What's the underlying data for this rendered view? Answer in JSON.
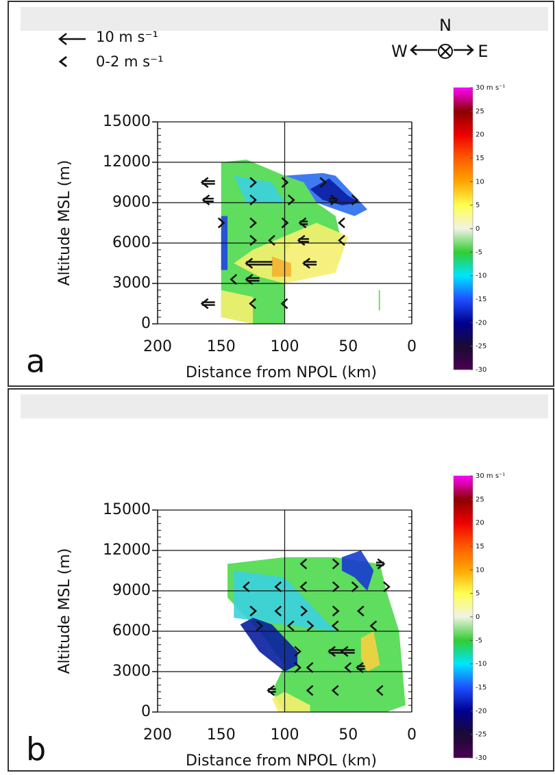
{
  "legend": {
    "arrow_label": "10 m s⁻¹",
    "arrow_speed": 10,
    "chevron_label": "0-2 m s⁻¹"
  },
  "compass": {
    "north": "N",
    "west": "W",
    "east": "E"
  },
  "chart_data": [
    {
      "type": "cross-section",
      "label": "a",
      "xlabel": "Distance from NPOL (km)",
      "ylabel": "Altitude MSL (m)",
      "xlim": [
        200,
        0
      ],
      "ylim": [
        0,
        15000
      ],
      "xticks": [
        200,
        150,
        100,
        50,
        0
      ],
      "yticks": [
        0,
        3000,
        6000,
        9000,
        12000,
        15000
      ],
      "xgrid": [
        100
      ],
      "colorbar": {
        "lim": [
          -30,
          30
        ],
        "ticks": [
          {
            "value": 30,
            "label": "30 m s⁻¹"
          },
          25,
          20,
          15,
          10,
          5,
          0,
          -5,
          -10,
          -15,
          -20,
          -25,
          -30
        ],
        "colors": [
          "#4b0050",
          "#1a0a35",
          "#000090",
          "#1e50ff",
          "#00e5ff",
          "#32cd32",
          "#f2f2e4",
          "#ffff50",
          "#ffa500",
          "#ff5a00",
          "#ee0000",
          "#8b0000",
          "#ff00ff"
        ]
      },
      "regions": [
        {
          "color": "#4cd94c",
          "x": [
            150,
            130,
            100,
            85,
            75,
            60,
            55,
            95,
            100,
            100,
            125,
            150
          ],
          "y": [
            12000,
            12200,
            11000,
            10500,
            9000,
            8000,
            6000,
            6000,
            5000,
            0,
            0,
            500
          ]
        },
        {
          "color": "#3cd0e0",
          "x": [
            140,
            110,
            100,
            130
          ],
          "y": [
            11000,
            10500,
            9000,
            9000
          ]
        },
        {
          "color": "#2a6cf0",
          "x": [
            100,
            70,
            60,
            45,
            35,
            45,
            60,
            75,
            85
          ],
          "y": [
            11000,
            11200,
            11000,
            9500,
            8500,
            8000,
            8500,
            9000,
            10500
          ]
        },
        {
          "color": "#0a1ea0",
          "x": [
            80,
            65,
            50,
            40,
            55,
            70
          ],
          "y": [
            10000,
            10800,
            9500,
            9000,
            8800,
            9200
          ]
        },
        {
          "color": "#2244e0",
          "x": [
            150,
            145,
            145,
            150
          ],
          "y": [
            8000,
            8000,
            4000,
            4000
          ]
        },
        {
          "color": "#f5f070",
          "x": [
            100,
            75,
            50,
            60,
            75,
            100,
            120,
            140,
            125
          ],
          "y": [
            6500,
            7500,
            6500,
            3800,
            3500,
            3000,
            3500,
            4500,
            5500
          ]
        },
        {
          "color": "#f5b030",
          "x": [
            110,
            95,
            95,
            110
          ],
          "y": [
            5000,
            4500,
            3500,
            3500
          ]
        },
        {
          "color": "#f5f070",
          "x": [
            150,
            125,
            125,
            150
          ],
          "y": [
            2500,
            2000,
            0,
            500
          ]
        },
        {
          "color": "#4cd94c",
          "x": [
            26,
            25,
            25,
            26
          ],
          "y": [
            2500,
            2500,
            1000,
            1000
          ]
        }
      ],
      "arrows": {
        "x": [
          160,
          160,
          125,
          100,
          70,
          62,
          45,
          125,
          95,
          150,
          125,
          100,
          85,
          55,
          125,
          110,
          85,
          55,
          120,
          80,
          140,
          125,
          160,
          125,
          100
        ],
        "y": [
          10500,
          9200,
          10500,
          10500,
          10500,
          9200,
          9200,
          9200,
          9200,
          7500,
          7500,
          7500,
          7500,
          7500,
          6200,
          6200,
          6200,
          6200,
          4500,
          4500,
          3300,
          3300,
          1500,
          1500,
          1500
        ],
        "u": [
          -5,
          -4,
          1,
          1,
          1,
          3,
          1,
          1,
          1,
          1,
          1,
          1,
          -3,
          -2,
          1,
          -1,
          -4,
          -1,
          -10,
          -5,
          -1,
          -5,
          -5,
          -1,
          -1
        ]
      }
    },
    {
      "type": "cross-section",
      "label": "b",
      "xlabel": "Distance from NPOL (km)",
      "ylabel": "Altitude MSL (m)",
      "xlim": [
        200,
        0
      ],
      "ylim": [
        0,
        15000
      ],
      "xticks": [
        200,
        150,
        100,
        50,
        0
      ],
      "yticks": [
        0,
        3000,
        6000,
        9000,
        12000,
        15000
      ],
      "xgrid": [
        100
      ],
      "colorbar": {
        "lim": [
          -30,
          30
        ],
        "ticks": [
          {
            "value": 30,
            "label": "30 m s⁻¹"
          },
          25,
          20,
          15,
          10,
          5,
          0,
          -5,
          -10,
          -15,
          -20,
          -25,
          -30
        ],
        "colors": [
          "#4b0050",
          "#1a0a35",
          "#000090",
          "#1e50ff",
          "#00e5ff",
          "#32cd32",
          "#f2f2e4",
          "#ffff50",
          "#ffa500",
          "#ff5a00",
          "#ee0000",
          "#8b0000",
          "#ff00ff"
        ]
      },
      "regions": [
        {
          "color": "#4cd94c",
          "x": [
            145,
            100,
            60,
            40,
            25,
            20,
            10,
            5,
            20,
            100,
            110,
            100,
            120,
            145
          ],
          "y": [
            11000,
            11500,
            11500,
            11200,
            11000,
            9000,
            6000,
            500,
            0,
            0,
            1500,
            3500,
            6000,
            8500
          ]
        },
        {
          "color": "#3cd0e0",
          "x": [
            140,
            100,
            80,
            60,
            100,
            140
          ],
          "y": [
            10500,
            10000,
            8000,
            6000,
            6500,
            7000
          ]
        },
        {
          "color": "#0a1ea0",
          "x": [
            125,
            110,
            90,
            90,
            100,
            120,
            135
          ],
          "y": [
            7000,
            6500,
            4500,
            3500,
            3000,
            4500,
            6500
          ]
        },
        {
          "color": "#1a3ad0",
          "x": [
            55,
            40,
            30,
            35,
            45,
            55
          ],
          "y": [
            11500,
            12000,
            10500,
            9000,
            10000,
            10500
          ]
        },
        {
          "color": "#f5d040",
          "x": [
            40,
            30,
            25,
            35,
            40
          ],
          "y": [
            5500,
            6000,
            3500,
            3000,
            4000
          ]
        },
        {
          "color": "#f5f070",
          "x": [
            110,
            100,
            80,
            80,
            105
          ],
          "y": [
            1000,
            1500,
            500,
            0,
            0
          ]
        }
      ],
      "arrows": {
        "x": [
          85,
          60,
          25,
          130,
          105,
          85,
          60,
          45,
          20,
          125,
          105,
          85,
          60,
          40,
          120,
          95,
          80,
          60,
          30,
          90,
          60,
          50,
          90,
          80,
          50,
          40,
          110,
          80,
          60,
          25
        ],
        "y": [
          11000,
          11000,
          11000,
          9300,
          9300,
          9300,
          9300,
          9300,
          9300,
          7500,
          7500,
          7500,
          7500,
          7500,
          6400,
          6400,
          6400,
          6400,
          6400,
          4500,
          4500,
          4500,
          3300,
          3300,
          3300,
          3300,
          1600,
          1600,
          1600,
          1600
        ],
        "u": [
          -1,
          1,
          3,
          -1,
          -1,
          -1,
          1,
          1,
          1,
          1,
          -1,
          1,
          1,
          -1,
          1,
          -1,
          1,
          -1,
          -1,
          2,
          -5,
          -5,
          2,
          -1,
          -1,
          -3,
          -3,
          -1,
          -1,
          -1
        ]
      }
    }
  ]
}
